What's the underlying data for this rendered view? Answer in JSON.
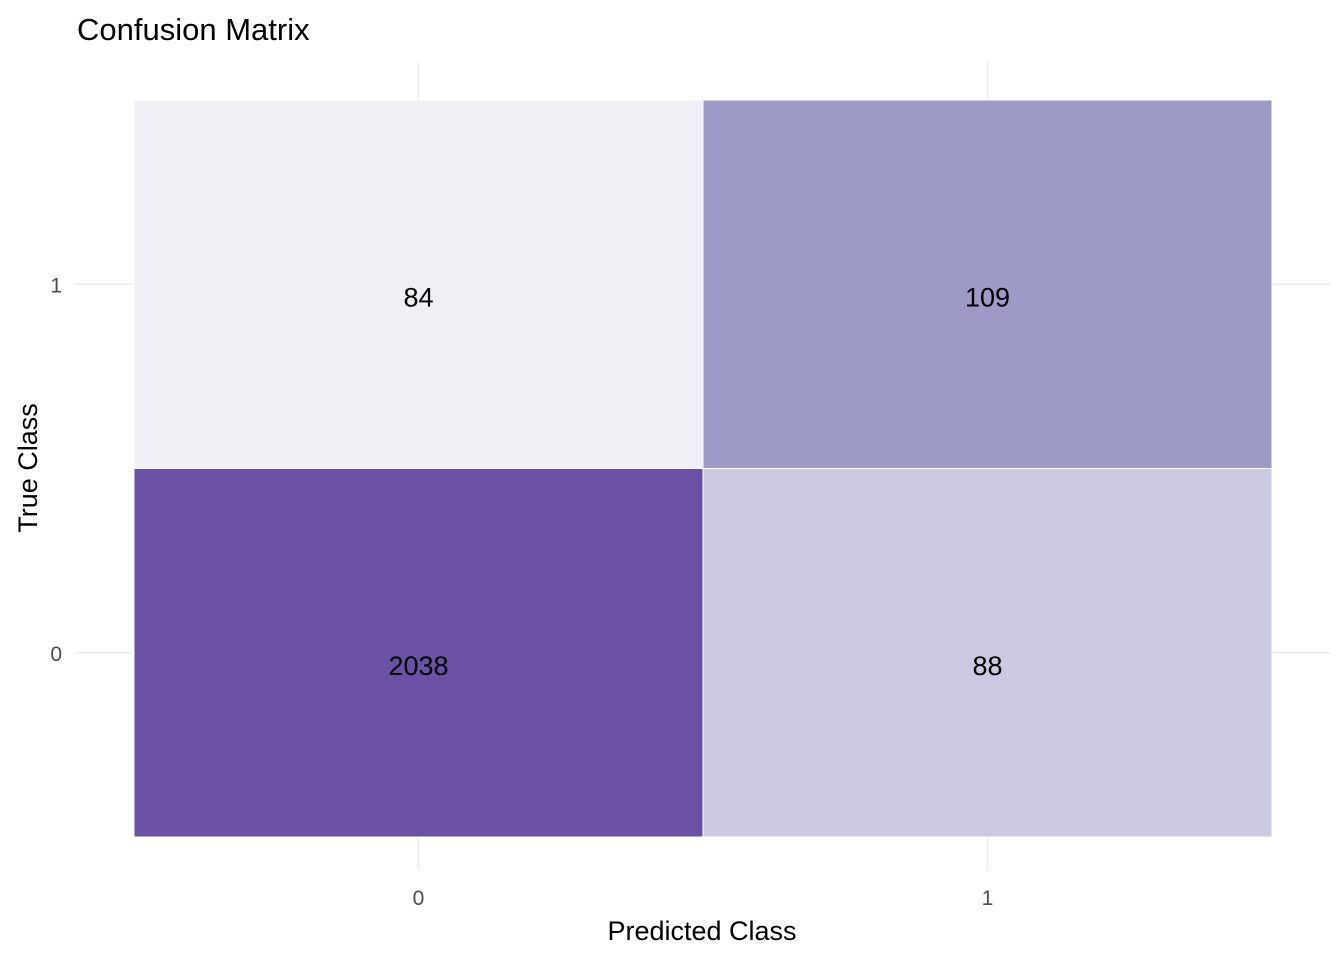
{
  "chart_data": {
    "type": "heatmap",
    "title": "Confusion Matrix",
    "xlabel": "Predicted Class",
    "ylabel": "True Class",
    "x_categories": [
      "0",
      "1"
    ],
    "y_categories": [
      "0",
      "1"
    ],
    "cells": [
      {
        "predicted": "0",
        "true": "1",
        "value": 84,
        "label": "84",
        "color": "#efeff5"
      },
      {
        "predicted": "1",
        "true": "1",
        "value": 109,
        "label": "109",
        "color": "#9e9ac8"
      },
      {
        "predicted": "0",
        "true": "0",
        "value": 2038,
        "label": "2038",
        "color": "#6a51a3"
      },
      {
        "predicted": "1",
        "true": "0",
        "value": 88,
        "label": "88",
        "color": "#cbc9e2"
      }
    ],
    "grid": true,
    "legend": "none",
    "colors": {
      "low": "#efeff5",
      "high": "#6a51a3",
      "gridline": "#ebebeb",
      "tick_text": "#4d4d4d"
    }
  }
}
